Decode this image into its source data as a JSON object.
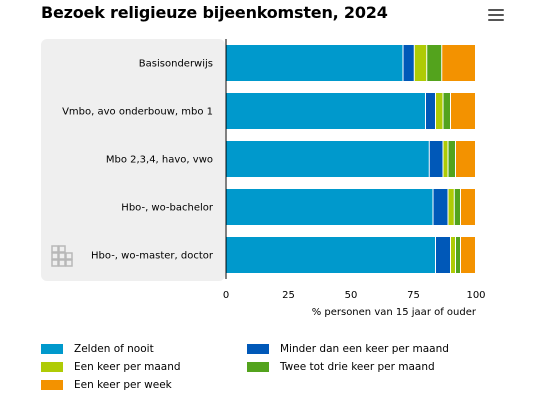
{
  "header": {
    "title": "Bezoek religieuze bijeenkomsten, 2024",
    "menu_icon": "hamburger-menu-icon"
  },
  "watermark_icon": "cbs-logo",
  "colors": {
    "Zelden of nooit": "#0099cc",
    "Minder dan een keer per maand": "#0058b8",
    "Een keer per maand": "#afcb05",
    "Twee tot drie keer per maand": "#53a31d",
    "Een keer per week": "#f39200",
    "panel": "#efefef"
  },
  "chart_data": {
    "type": "bar",
    "orientation": "horizontal",
    "stacked": true,
    "title": "Bezoek religieuze bijeenkomsten, 2024",
    "xlabel": "% personen van 15 jaar of ouder",
    "ylabel": "",
    "xlim": [
      0,
      100
    ],
    "xticks": [
      "0",
      "25",
      "50",
      "75",
      "100"
    ],
    "categories": [
      "Basisonderwijs",
      "Vmbo, avo onderbouw, mbo 1",
      "Mbo 2,3,4, havo, vwo",
      "Hbo-, wo-bachelor",
      "Hbo-, wo-master, doctor"
    ],
    "series": [
      {
        "name": "Zelden of nooit",
        "values": [
          71,
          80,
          81.5,
          83,
          84
        ]
      },
      {
        "name": "Minder dan een keer per maand",
        "values": [
          4.5,
          4,
          5.5,
          6,
          6
        ]
      },
      {
        "name": "Een keer per maand",
        "values": [
          5,
          3,
          2,
          2.5,
          2
        ]
      },
      {
        "name": "Twee tot drie keer per maand",
        "values": [
          6,
          3,
          3,
          2.5,
          2
        ]
      },
      {
        "name": "Een keer per week",
        "values": [
          13.5,
          10,
          8,
          6,
          6
        ]
      }
    ],
    "grid": false,
    "legend_position": "bottom"
  },
  "legend": [
    {
      "name": "Zelden of nooit"
    },
    {
      "name": "Minder dan een keer per maand"
    },
    {
      "name": "Een keer per maand"
    },
    {
      "name": "Twee tot drie keer per maand"
    },
    {
      "name": "Een keer per week"
    }
  ]
}
